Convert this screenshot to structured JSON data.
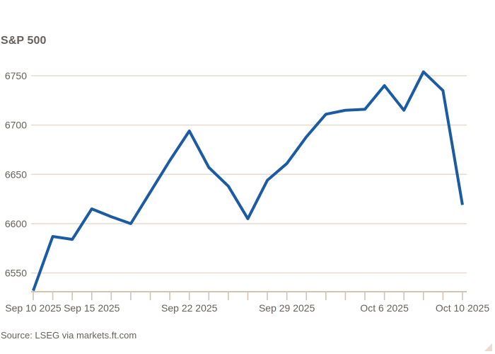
{
  "title": "S&P 500",
  "source": "Source: LSEG via markets.ft.com",
  "colors": {
    "line": "#1b5ba3",
    "grid": "#e8dacc",
    "axis": "#d2c3b5",
    "text": "#66605c",
    "watermark": "#e9dbcd",
    "background": "#ffffff"
  },
  "chart_data": {
    "type": "line",
    "title": "S&P 500",
    "x": [
      "Sep 10",
      "Sep 11",
      "Sep 12",
      "Sep 15",
      "Sep 16",
      "Sep 17",
      "Sep 18",
      "Sep 19",
      "Sep 22",
      "Sep 23",
      "Sep 24",
      "Sep 25",
      "Sep 26",
      "Sep 29",
      "Sep 30",
      "Oct 1",
      "Oct 2",
      "Oct 3",
      "Oct 6",
      "Oct 7",
      "Oct 8",
      "Oct 9",
      "Oct 10"
    ],
    "values": [
      6532,
      6587,
      6584,
      6615,
      6607,
      6600,
      6632,
      6664,
      6694,
      6657,
      6638,
      6605,
      6644,
      6661,
      6688,
      6711,
      6715,
      6716,
      6740,
      6715,
      6754,
      6735,
      6619
    ],
    "yticks": [
      6550,
      6600,
      6650,
      6700,
      6750
    ],
    "ylim": [
      6531,
      6760
    ],
    "xtick_labels": [
      {
        "index": 0,
        "label": "Sep 10 2025"
      },
      {
        "index": 3,
        "label": "Sep 15 2025"
      },
      {
        "index": 8,
        "label": "Sep 22 2025"
      },
      {
        "index": 13,
        "label": "Sep 29 2025"
      },
      {
        "index": 18,
        "label": "Oct 6 2025"
      },
      {
        "index": 22,
        "label": "Oct 10 2025"
      }
    ],
    "grid": "horizontal",
    "legend": "none"
  }
}
